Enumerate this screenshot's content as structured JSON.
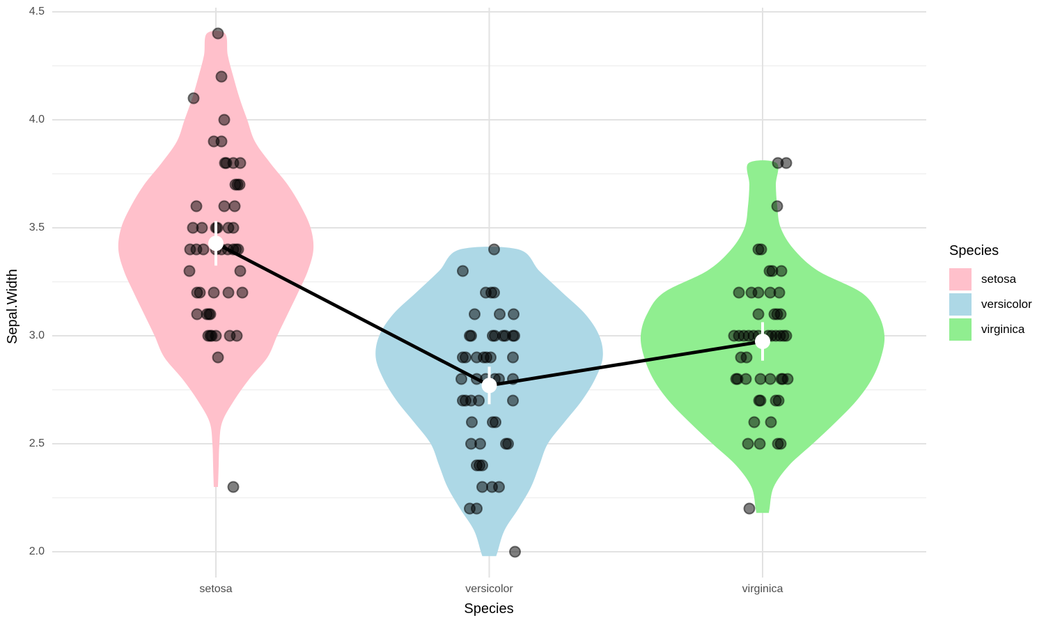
{
  "chart_data": {
    "type": "violin",
    "title": "",
    "xlabel": "Species",
    "ylabel": "Sepal.Width",
    "categories": [
      "setosa",
      "versicolor",
      "virginica"
    ],
    "x_tick_labels": [
      "setosa",
      "versicolor",
      "virginica"
    ],
    "y_tick_labels": [
      "2.0",
      "2.5",
      "3.0",
      "3.5",
      "4.0",
      "4.5"
    ],
    "y_major_ticks": [
      2.0,
      2.5,
      3.0,
      3.5,
      4.0,
      4.5
    ],
    "y_minor_ticks": [
      2.25,
      2.75,
      3.25,
      3.75,
      4.25
    ],
    "ylim": [
      1.95,
      4.52
    ],
    "grid": true,
    "legend": {
      "title": "Species",
      "position": "right",
      "entries": [
        {
          "label": "setosa",
          "color": "#FFC0CB"
        },
        {
          "label": "versicolor",
          "color": "#ADD8E6"
        },
        {
          "label": "virginica",
          "color": "#90EE90"
        }
      ]
    },
    "style": {
      "grid_major_color": "#e2e2e2",
      "grid_minor_color": "#f0f0f0",
      "jitter_point_fill": "rgba(0,0,0,0.5)",
      "jitter_point_stroke": "rgba(0,0,0,0.5)",
      "mean_line_color": "#000000",
      "mean_point_color": "#ffffff",
      "tick_label_color": "#4d4d4d"
    },
    "series": [
      {
        "name": "setosa",
        "fill": "#FFC0CB",
        "mean": 3.428,
        "ci": [
          3.325,
          3.531
        ],
        "violin_outline": [
          [
            2.3,
            3
          ],
          [
            2.4,
            4
          ],
          [
            2.5,
            5
          ],
          [
            2.6,
            9
          ],
          [
            2.7,
            26
          ],
          [
            2.8,
            48
          ],
          [
            2.9,
            74
          ],
          [
            3.0,
            88
          ],
          [
            3.1,
            103
          ],
          [
            3.2,
            118
          ],
          [
            3.3,
            132
          ],
          [
            3.4,
            140
          ],
          [
            3.5,
            136
          ],
          [
            3.6,
            122
          ],
          [
            3.7,
            103
          ],
          [
            3.8,
            78
          ],
          [
            3.9,
            56
          ],
          [
            4.0,
            45
          ],
          [
            4.1,
            34
          ],
          [
            4.2,
            25
          ],
          [
            4.3,
            17
          ],
          [
            4.4,
            13
          ]
        ],
        "points": [
          [
            25,
            2.3
          ],
          [
            3,
            2.9
          ],
          [
            -11,
            3.0
          ],
          [
            -8,
            3.0
          ],
          [
            -6,
            3.0
          ],
          [
            0,
            3.0
          ],
          [
            20,
            3.0
          ],
          [
            30,
            3.0
          ],
          [
            -27,
            3.1
          ],
          [
            -13,
            3.1
          ],
          [
            -10,
            3.1
          ],
          [
            -8,
            3.1
          ],
          [
            -27,
            3.2
          ],
          [
            -23,
            3.2
          ],
          [
            -3,
            3.2
          ],
          [
            18,
            3.2
          ],
          [
            38,
            3.2
          ],
          [
            -38,
            3.3
          ],
          [
            35,
            3.3
          ],
          [
            -37,
            3.4
          ],
          [
            -28,
            3.4
          ],
          [
            -18,
            3.4
          ],
          [
            0,
            3.4
          ],
          [
            8,
            3.4
          ],
          [
            17,
            3.4
          ],
          [
            25,
            3.4
          ],
          [
            29,
            3.4
          ],
          [
            32,
            3.4
          ],
          [
            -33,
            3.5
          ],
          [
            -20,
            3.5
          ],
          [
            0,
            3.5
          ],
          [
            2,
            3.5
          ],
          [
            18,
            3.5
          ],
          [
            25,
            3.5
          ],
          [
            -28,
            3.6
          ],
          [
            12,
            3.6
          ],
          [
            27,
            3.6
          ],
          [
            28,
            3.7
          ],
          [
            31,
            3.7
          ],
          [
            34,
            3.7
          ],
          [
            13,
            3.8
          ],
          [
            15,
            3.8
          ],
          [
            25,
            3.8
          ],
          [
            35,
            3.8
          ],
          [
            -3,
            3.9
          ],
          [
            8,
            3.9
          ],
          [
            12,
            4.0
          ],
          [
            -32,
            4.1
          ],
          [
            8,
            4.2
          ],
          [
            3,
            4.4
          ]
        ]
      },
      {
        "name": "versicolor",
        "fill": "#ADD8E6",
        "mean": 2.77,
        "ci": [
          2.683,
          2.857
        ],
        "violin_outline": [
          [
            1.98,
            10
          ],
          [
            2.0,
            12
          ],
          [
            2.1,
            22
          ],
          [
            2.2,
            42
          ],
          [
            2.3,
            60
          ],
          [
            2.4,
            72
          ],
          [
            2.5,
            84
          ],
          [
            2.6,
            108
          ],
          [
            2.7,
            133
          ],
          [
            2.8,
            152
          ],
          [
            2.9,
            163
          ],
          [
            3.0,
            158
          ],
          [
            3.1,
            138
          ],
          [
            3.2,
            105
          ],
          [
            3.3,
            72
          ],
          [
            3.4,
            42
          ]
        ],
        "points": [
          [
            37,
            2.0
          ],
          [
            -28,
            2.2
          ],
          [
            -18,
            2.2
          ],
          [
            -10,
            2.3
          ],
          [
            4,
            2.3
          ],
          [
            14,
            2.3
          ],
          [
            -18,
            2.4
          ],
          [
            -14,
            2.4
          ],
          [
            -10,
            2.4
          ],
          [
            -26,
            2.5
          ],
          [
            -13,
            2.5
          ],
          [
            24,
            2.5
          ],
          [
            27,
            2.5
          ],
          [
            -25,
            2.6
          ],
          [
            5,
            2.6
          ],
          [
            9,
            2.6
          ],
          [
            -38,
            2.7
          ],
          [
            -34,
            2.7
          ],
          [
            -26,
            2.7
          ],
          [
            -15,
            2.7
          ],
          [
            34,
            2.7
          ],
          [
            -40,
            2.8
          ],
          [
            -18,
            2.8
          ],
          [
            -5,
            2.8
          ],
          [
            8,
            2.8
          ],
          [
            14,
            2.8
          ],
          [
            34,
            2.8
          ],
          [
            -38,
            2.9
          ],
          [
            -34,
            2.9
          ],
          [
            -18,
            2.9
          ],
          [
            -8,
            2.9
          ],
          [
            -4,
            2.9
          ],
          [
            2,
            2.9
          ],
          [
            34,
            2.9
          ],
          [
            -28,
            3.0
          ],
          [
            -26,
            3.0
          ],
          [
            5,
            3.0
          ],
          [
            8,
            3.0
          ],
          [
            20,
            3.0
          ],
          [
            23,
            3.0
          ],
          [
            34,
            3.0
          ],
          [
            36,
            3.0
          ],
          [
            -21,
            3.1
          ],
          [
            15,
            3.1
          ],
          [
            35,
            3.1
          ],
          [
            -5,
            3.2
          ],
          [
            3,
            3.2
          ],
          [
            7,
            3.2
          ],
          [
            -38,
            3.3
          ],
          [
            7,
            3.4
          ]
        ]
      },
      {
        "name": "virginica",
        "fill": "#90EE90",
        "mean": 2.974,
        "ci": [
          2.885,
          3.063
        ],
        "violin_outline": [
          [
            2.18,
            9
          ],
          [
            2.2,
            10
          ],
          [
            2.3,
            16
          ],
          [
            2.4,
            38
          ],
          [
            2.5,
            72
          ],
          [
            2.6,
            105
          ],
          [
            2.7,
            135
          ],
          [
            2.8,
            157
          ],
          [
            2.9,
            170
          ],
          [
            3.0,
            175
          ],
          [
            3.1,
            166
          ],
          [
            3.2,
            142
          ],
          [
            3.3,
            80
          ],
          [
            3.4,
            45
          ],
          [
            3.5,
            26
          ],
          [
            3.6,
            21
          ],
          [
            3.7,
            19
          ],
          [
            3.8,
            20
          ]
        ],
        "points": [
          [
            -19,
            2.2
          ],
          [
            -21,
            2.5
          ],
          [
            -4,
            2.5
          ],
          [
            22,
            2.5
          ],
          [
            26,
            2.5
          ],
          [
            -12,
            2.6
          ],
          [
            12,
            2.6
          ],
          [
            -5,
            2.7
          ],
          [
            -3,
            2.7
          ],
          [
            19,
            2.7
          ],
          [
            23,
            2.7
          ],
          [
            -38,
            2.8
          ],
          [
            -36,
            2.8
          ],
          [
            -24,
            2.8
          ],
          [
            -3,
            2.8
          ],
          [
            11,
            2.8
          ],
          [
            27,
            2.8
          ],
          [
            29,
            2.8
          ],
          [
            36,
            2.8
          ],
          [
            -31,
            2.9
          ],
          [
            -23,
            2.9
          ],
          [
            -41,
            3.0
          ],
          [
            -34,
            3.0
          ],
          [
            -27,
            3.0
          ],
          [
            -20,
            3.0
          ],
          [
            -13,
            3.0
          ],
          [
            -6,
            3.0
          ],
          [
            8,
            3.0
          ],
          [
            13,
            3.0
          ],
          [
            19,
            3.0
          ],
          [
            25,
            3.0
          ],
          [
            30,
            3.0
          ],
          [
            34,
            3.0
          ],
          [
            -6,
            3.1
          ],
          [
            17,
            3.1
          ],
          [
            21,
            3.1
          ],
          [
            26,
            3.1
          ],
          [
            -34,
            3.2
          ],
          [
            -16,
            3.2
          ],
          [
            -6,
            3.2
          ],
          [
            11,
            3.2
          ],
          [
            24,
            3.2
          ],
          [
            10,
            3.3
          ],
          [
            14,
            3.3
          ],
          [
            27,
            3.3
          ],
          [
            -6,
            3.4
          ],
          [
            -2,
            3.4
          ],
          [
            21,
            3.6
          ],
          [
            22,
            3.8
          ],
          [
            34,
            3.8
          ]
        ]
      }
    ]
  }
}
